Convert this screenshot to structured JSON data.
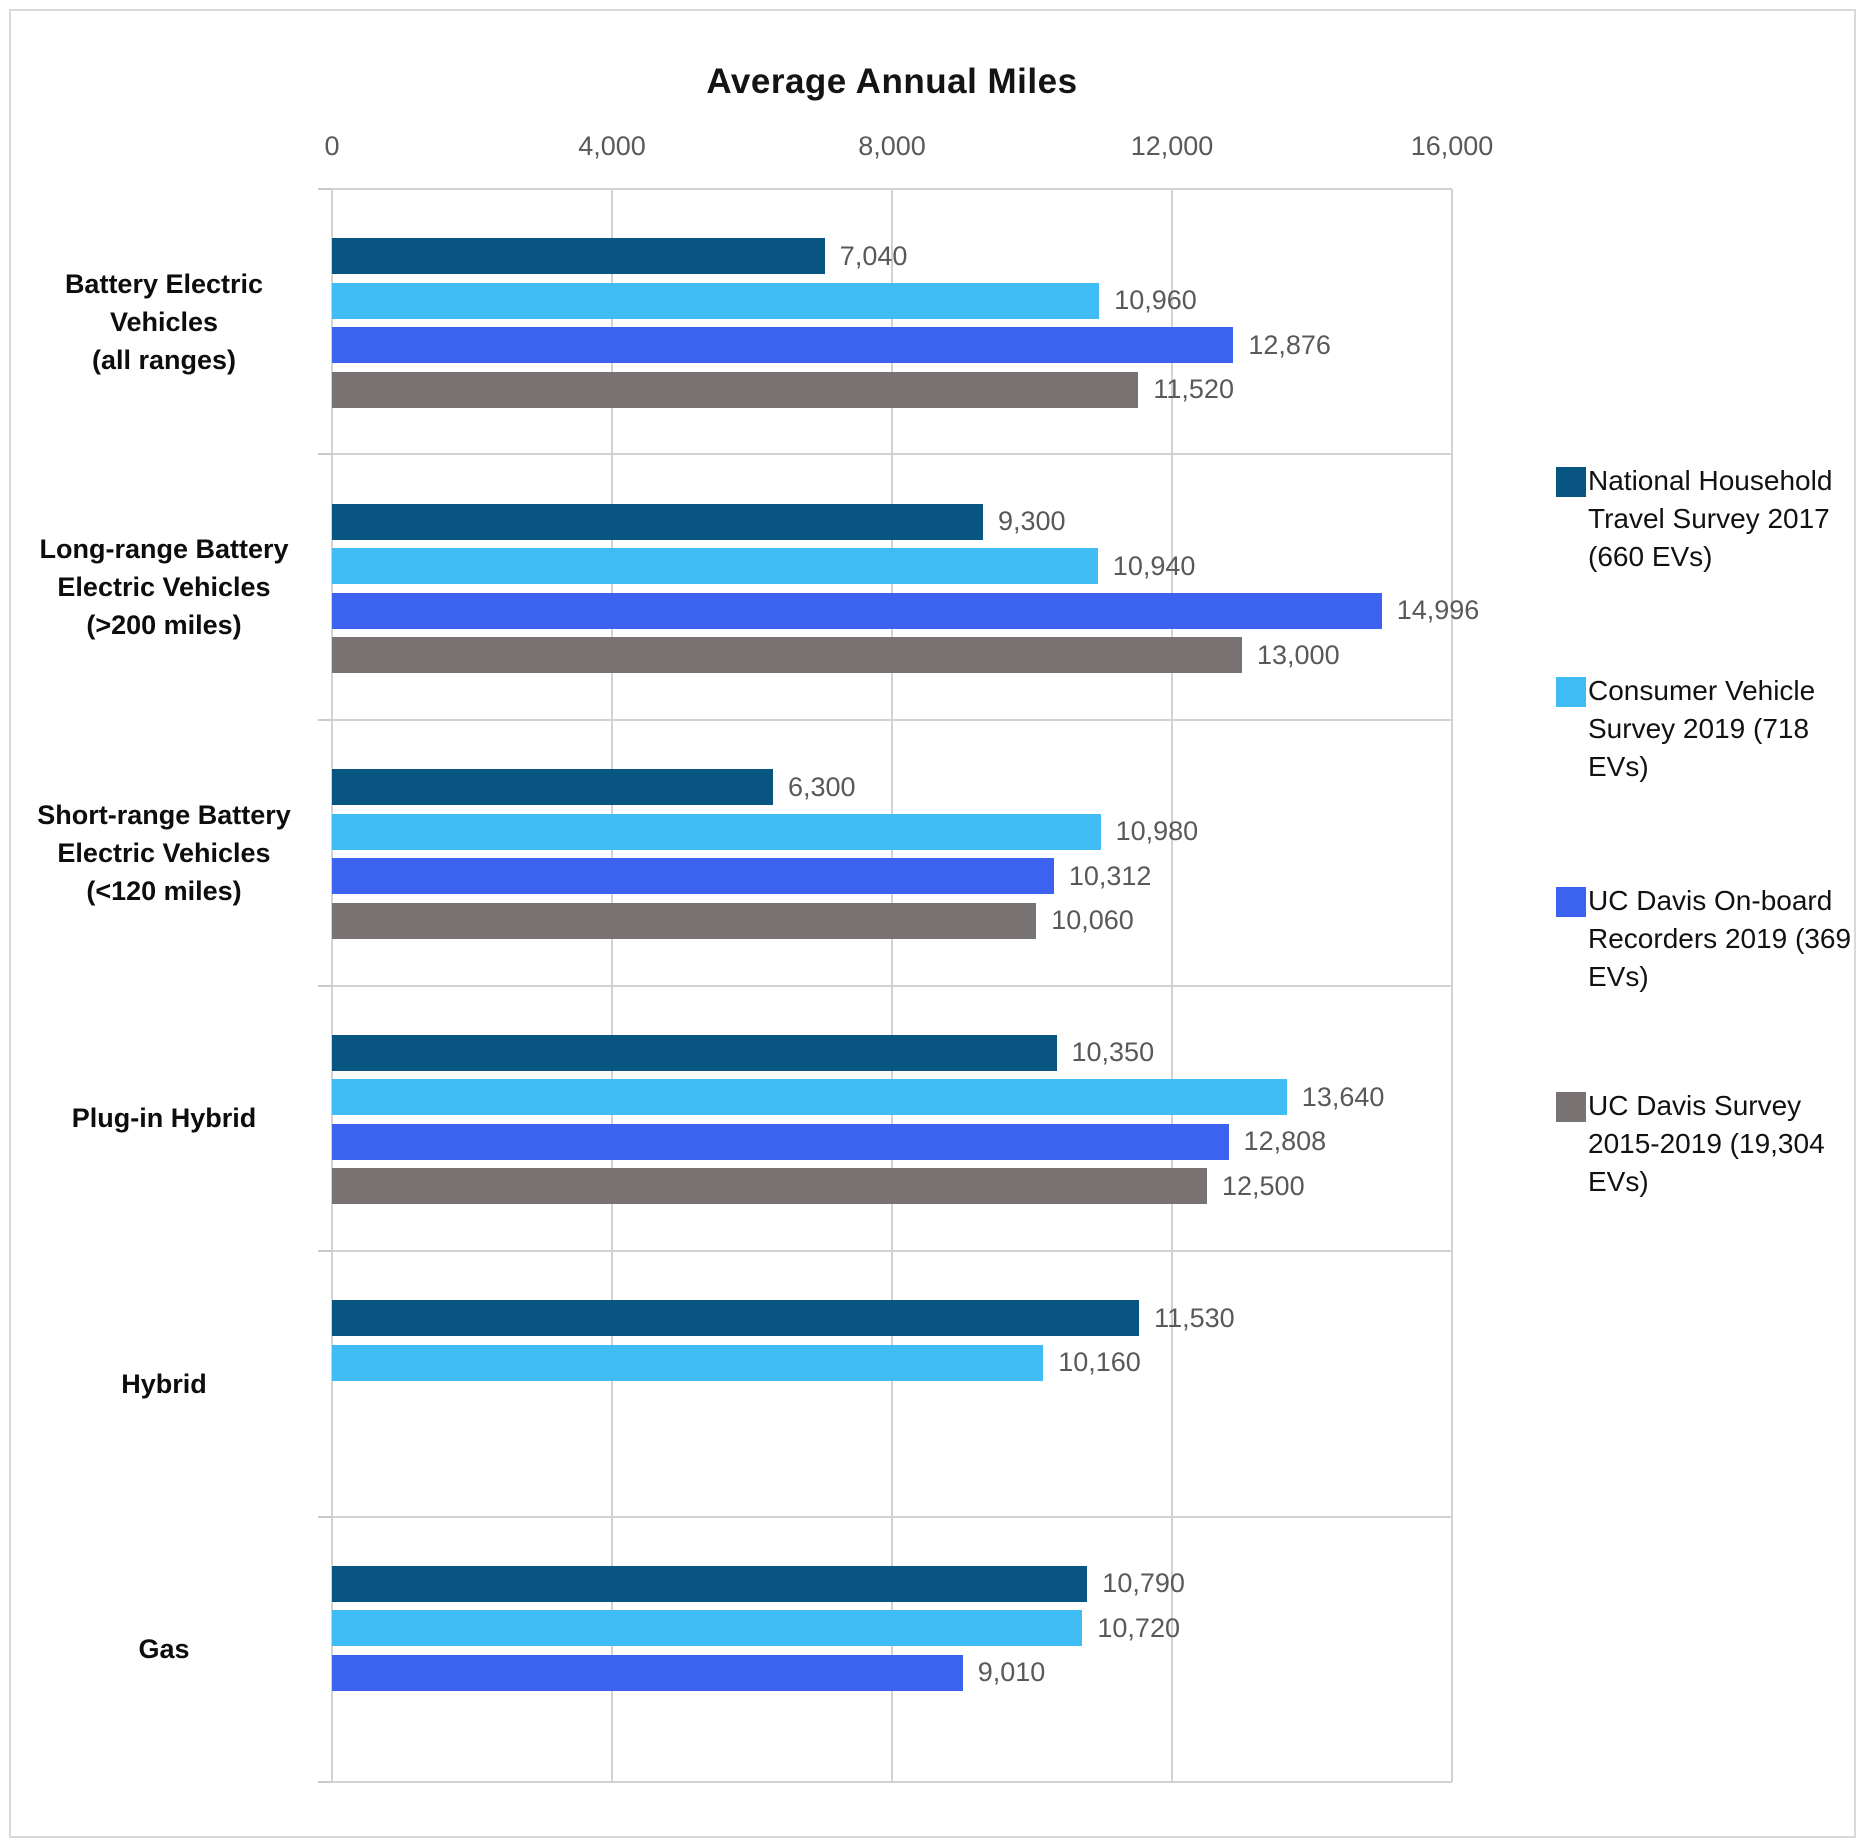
{
  "chart_data": {
    "type": "bar",
    "orientation": "horizontal",
    "title": "Average Annual Miles",
    "xlabel": "",
    "ylabel": "",
    "x_axis": {
      "min": 0,
      "max": 16000,
      "tick_interval": 4000,
      "tick_labels": [
        "0",
        "4,000",
        "8,000",
        "12,000",
        "16,000"
      ]
    },
    "grid": true,
    "legend_position": "right",
    "categories": [
      "Battery Electric Vehicles (all ranges)",
      "Long-range Battery Electric Vehicles (>200 miles)",
      "Short-range Battery Electric Vehicles (<120 miles)",
      "Plug-in Hybrid",
      "Hybrid",
      "Gas"
    ],
    "categories_display": [
      [
        "Battery Electric",
        "Vehicles",
        "(all ranges)"
      ],
      [
        "Long-range Battery",
        "Electric Vehicles",
        "(>200 miles)"
      ],
      [
        "Short-range Battery",
        "Electric Vehicles",
        "(<120 miles)"
      ],
      [
        "Plug-in Hybrid"
      ],
      [
        "Hybrid"
      ],
      [
        "Gas"
      ]
    ],
    "series": [
      {
        "name": "National Household Travel Survey 2017 (660 EVs)",
        "color": "#085581",
        "values": [
          7040,
          9300,
          6300,
          10350,
          11530,
          10790
        ],
        "value_labels": [
          "7,040",
          "9,300",
          "6,300",
          "10,350",
          "11,530",
          "10,790"
        ]
      },
      {
        "name": "Consumer Vehicle Survey 2019 (718 EVs)",
        "color": "#3EBCF3",
        "values": [
          10960,
          10940,
          10980,
          13640,
          10160,
          10720
        ],
        "value_labels": [
          "10,960",
          "10,940",
          "10,980",
          "13,640",
          "10,160",
          "10,720"
        ]
      },
      {
        "name": "UC Davis On-board Recorders 2019 (369 EVs)",
        "color": "#3B63F0",
        "values": [
          12876,
          14996,
          10312,
          12808,
          null,
          9010
        ],
        "value_labels": [
          "12,876",
          "14,996",
          "10,312",
          "12,808",
          null,
          "9,010"
        ]
      },
      {
        "name": "UC Davis Survey 2015-2019 (19,304 EVs)",
        "color": "#787272",
        "values": [
          11520,
          13000,
          10060,
          12500,
          null,
          null
        ],
        "value_labels": [
          "11,520",
          "13,000",
          "10,060",
          "12,500",
          null,
          null
        ]
      }
    ],
    "colors": {
      "gridline": "#D2D2D2",
      "axis_text": "#595959",
      "value_label_text": "#595959",
      "title_text": "#141414",
      "category_text": "#0d0d0d"
    }
  }
}
